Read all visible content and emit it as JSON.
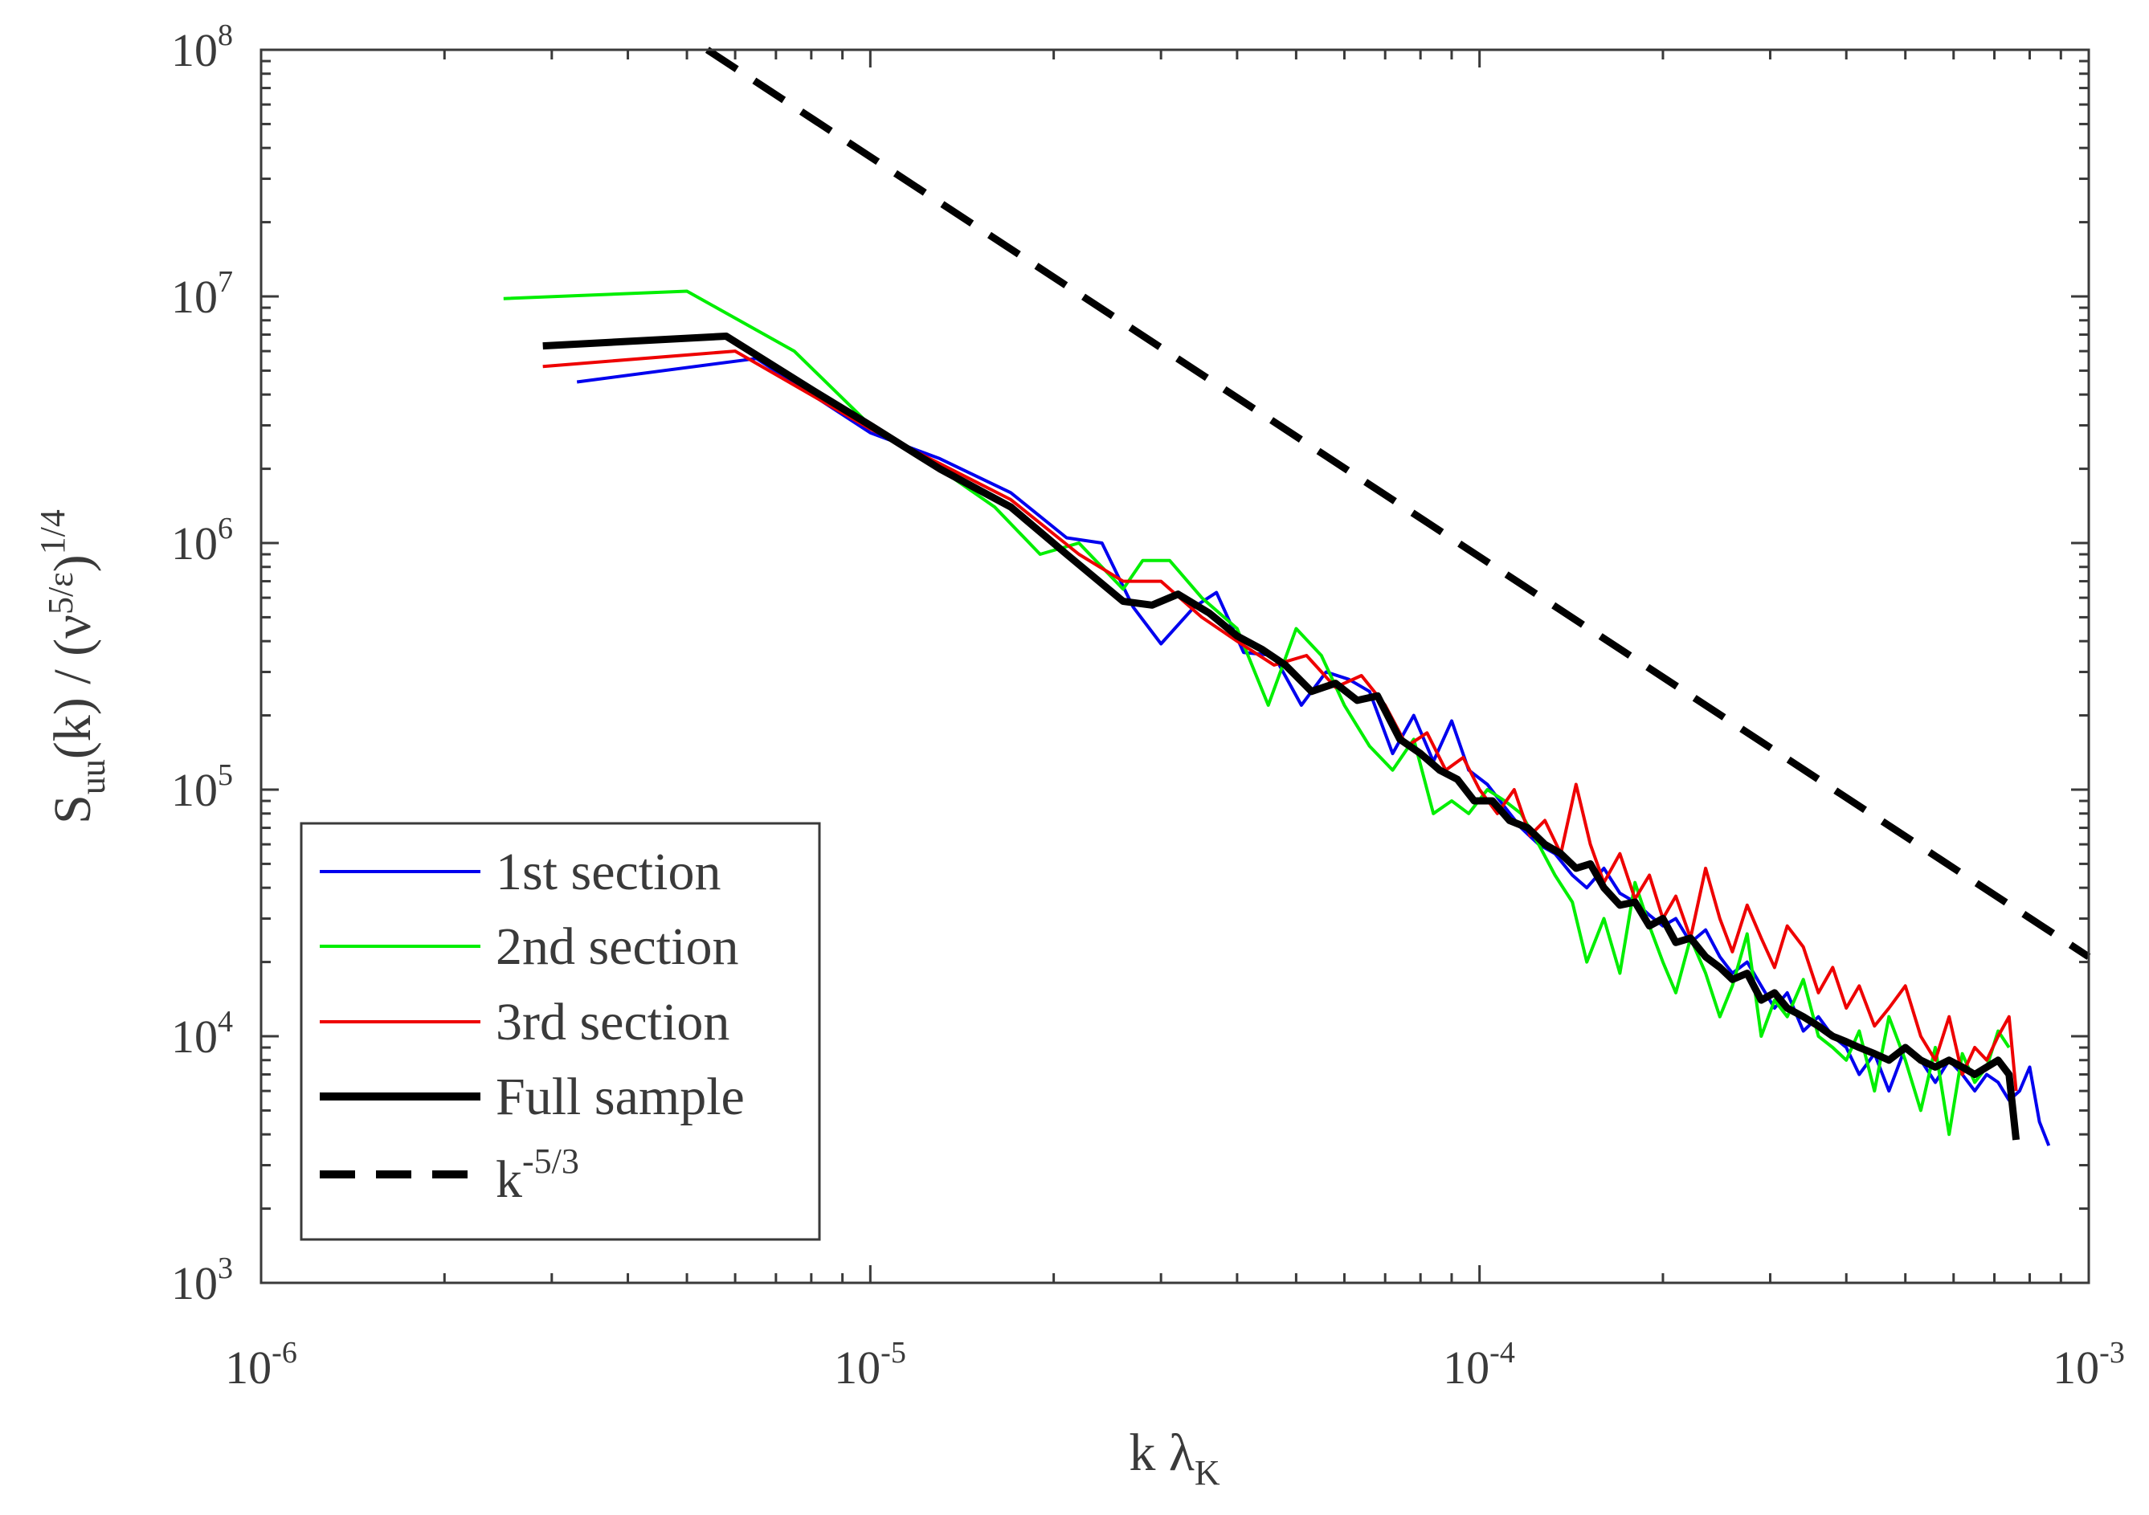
{
  "chart_data": {
    "type": "line",
    "title": "",
    "x_scale": "log",
    "y_scale": "log",
    "xlim": [
      1e-06,
      0.001
    ],
    "ylim": [
      1000.0,
      100000000.0
    ],
    "grid": false,
    "legend_position": "bottom-left",
    "xlabel": {
      "main": "k ",
      "symbol": "λ",
      "sub": "K"
    },
    "ylabel": {
      "s": "S",
      "sub": "uu",
      "mid": "(k) / (",
      "nu": "ν",
      "exp5": "5",
      "slash": "/",
      "eps": "ε",
      "close": ")",
      "sup": "1/4"
    },
    "x_ticks": [
      {
        "base": "10",
        "exp": "-6",
        "value": 1e-06
      },
      {
        "base": "10",
        "exp": "-5",
        "value": 1e-05
      },
      {
        "base": "10",
        "exp": "-4",
        "value": 0.0001
      },
      {
        "base": "10",
        "exp": "-3",
        "value": 0.001
      }
    ],
    "y_ticks": [
      {
        "base": "10",
        "exp": "3",
        "value": 1000.0
      },
      {
        "base": "10",
        "exp": "4",
        "value": 10000.0
      },
      {
        "base": "10",
        "exp": "5",
        "value": 100000.0
      },
      {
        "base": "10",
        "exp": "6",
        "value": 1000000.0
      },
      {
        "base": "10",
        "exp": "7",
        "value": 10000000.0
      },
      {
        "base": "10",
        "exp": "8",
        "value": 100000000.0
      }
    ],
    "series": [
      {
        "name": "1st section",
        "color": "#0000ee",
        "style": "solid",
        "weight": "thin",
        "x": [
          3.3e-06,
          6.5e-06,
          1e-05,
          1.3e-05,
          1.7e-05,
          2.1e-05,
          2.4e-05,
          2.7e-05,
          3e-05,
          3.4e-05,
          3.7e-05,
          4.1e-05,
          4.6e-05,
          5.1e-05,
          5.6e-05,
          6.1e-05,
          6.6e-05,
          7.2e-05,
          7.8e-05,
          8.4e-05,
          9e-05,
          9.6e-05,
          0.000103,
          0.00011,
          0.000117,
          0.000125,
          0.000133,
          0.000142,
          0.00015,
          0.00016,
          0.00017,
          0.00018,
          0.00019,
          0.0002,
          0.00021,
          0.000222,
          0.000235,
          0.000248,
          0.00026,
          0.000275,
          0.00029,
          0.000305,
          0.00032,
          0.00034,
          0.00036,
          0.00038,
          0.0004,
          0.00042,
          0.000445,
          0.00047,
          0.0005,
          0.00053,
          0.00056,
          0.00059,
          0.00062,
          0.00065,
          0.00068,
          0.00071,
          0.00074,
          0.00077,
          0.0008,
          0.00083,
          0.00086
        ],
        "y": [
          4500000.0,
          5600000.0,
          2800000.0,
          2200000.0,
          1600000.0,
          1050000.0,
          1000000.0,
          550000.0,
          390000.0,
          550000.0,
          630000.0,
          360000.0,
          350000.0,
          220000.0,
          300000.0,
          280000.0,
          250000.0,
          140000.0,
          200000.0,
          130000.0,
          190000.0,
          120000.0,
          105000.0,
          85000.0,
          70000.0,
          60000.0,
          55000.0,
          45000.0,
          40000.0,
          48000.0,
          38000.0,
          35000.0,
          31000.0,
          28000.0,
          30000.0,
          24000.0,
          27000.0,
          21000.0,
          18000.0,
          20000.0,
          16000.0,
          13000.0,
          15000.0,
          10500.0,
          12000.0,
          10000.0,
          9000.0,
          7000.0,
          8500.0,
          6000.0,
          9000.0,
          8000.0,
          6500.0,
          8000.0,
          7000.0,
          6000.0,
          7000.0,
          6500.0,
          5500.0,
          6000.0,
          7500.0,
          4500.0,
          3600.0
        ]
      },
      {
        "name": "2nd section",
        "color": "#00ee00",
        "style": "solid",
        "weight": "thin",
        "x": [
          2.5e-06,
          5e-06,
          7.5e-06,
          1e-05,
          1.3e-05,
          1.6e-05,
          1.9e-05,
          2.2e-05,
          2.6e-05,
          2.8e-05,
          3.1e-05,
          3.5e-05,
          4e-05,
          4.5e-05,
          5e-05,
          5.5e-05,
          6e-05,
          6.6e-05,
          7.2e-05,
          7.8e-05,
          8.4e-05,
          9e-05,
          9.6e-05,
          0.000103,
          0.00011,
          0.000117,
          0.000125,
          0.000133,
          0.000142,
          0.00015,
          0.00016,
          0.00017,
          0.00018,
          0.00019,
          0.0002,
          0.00021,
          0.000222,
          0.000235,
          0.000248,
          0.00026,
          0.000275,
          0.00029,
          0.000305,
          0.00032,
          0.00034,
          0.00036,
          0.00038,
          0.0004,
          0.00042,
          0.000445,
          0.00047,
          0.0005,
          0.00053,
          0.00056,
          0.00059,
          0.00062,
          0.00065,
          0.00068,
          0.00071,
          0.00074
        ],
        "y": [
          9800000.0,
          10500000.0,
          6000000.0,
          3000000.0,
          2000000.0,
          1400000.0,
          900000.0,
          1000000.0,
          650000.0,
          850000.0,
          850000.0,
          600000.0,
          450000.0,
          220000.0,
          450000.0,
          350000.0,
          220000.0,
          150000.0,
          120000.0,
          160000.0,
          80000.0,
          90000.0,
          80000.0,
          100000.0,
          90000.0,
          80000.0,
          60000.0,
          45000.0,
          35000.0,
          20000.0,
          30000.0,
          18000.0,
          42000.0,
          28000.0,
          20000.0,
          15000.0,
          25000.0,
          18000.0,
          12000.0,
          16000.0,
          26000.0,
          10000.0,
          14000.0,
          12000.0,
          17000.0,
          10000.0,
          9000.0,
          8000.0,
          10500.0,
          6000.0,
          12000.0,
          8000.0,
          5000.0,
          9000.0,
          4000.0,
          8500.0,
          6500.0,
          7500.0,
          10500.0,
          9000.0
        ]
      },
      {
        "name": "3rd section",
        "color": "#ee0000",
        "style": "solid",
        "weight": "thin",
        "x": [
          2.9e-06,
          6e-06,
          1e-05,
          1.3e-05,
          1.7e-05,
          2.2e-05,
          2.6e-05,
          3e-05,
          3.5e-05,
          4e-05,
          4.6e-05,
          5.2e-05,
          5.8e-05,
          6.4e-05,
          7e-05,
          7.6e-05,
          8.2e-05,
          8.8e-05,
          9.4e-05,
          0.0001,
          0.000107,
          0.000114,
          0.000121,
          0.000128,
          0.000136,
          0.000144,
          0.000152,
          0.00016,
          0.00017,
          0.00018,
          0.00019,
          0.0002,
          0.00021,
          0.000222,
          0.000235,
          0.000248,
          0.00026,
          0.000275,
          0.00029,
          0.000305,
          0.00032,
          0.00034,
          0.00036,
          0.00038,
          0.0004,
          0.00042,
          0.000445,
          0.00047,
          0.0005,
          0.00053,
          0.00056,
          0.00059,
          0.00062,
          0.00065,
          0.00068,
          0.00071,
          0.00074,
          0.00076
        ],
        "y": [
          5200000.0,
          6000000.0,
          2900000.0,
          2100000.0,
          1500000.0,
          900000.0,
          700000.0,
          700000.0,
          500000.0,
          400000.0,
          320000.0,
          350000.0,
          260000.0,
          290000.0,
          220000.0,
          150000.0,
          170000.0,
          120000.0,
          135000.0,
          100000.0,
          80000.0,
          100000.0,
          65000.0,
          75000.0,
          55000.0,
          105000.0,
          60000.0,
          42000.0,
          55000.0,
          36000.0,
          45000.0,
          30000.0,
          37000.0,
          25000.0,
          48000.0,
          30000.0,
          22000.0,
          34000.0,
          25000.0,
          19000.0,
          28000.0,
          23000.0,
          15000.0,
          19000.0,
          13000.0,
          16000.0,
          11000.0,
          13000.0,
          16000.0,
          10000.0,
          8000.0,
          12000.0,
          7000.0,
          9000.0,
          8000.0,
          10000.0,
          12000.0,
          6000.0
        ]
      },
      {
        "name": "Full sample",
        "color": "#000000",
        "style": "solid",
        "weight": "thick",
        "x": [
          2.9e-06,
          5.8e-06,
          8e-06,
          1e-05,
          1.3e-05,
          1.7e-05,
          2.1e-05,
          2.6e-05,
          2.9e-05,
          3.2e-05,
          3.6e-05,
          4e-05,
          4.4e-05,
          4.8e-05,
          5.3e-05,
          5.8e-05,
          6.3e-05,
          6.8e-05,
          7.4e-05,
          8e-05,
          8.6e-05,
          9.2e-05,
          9.8e-05,
          0.000105,
          0.000112,
          0.00012,
          0.000128,
          0.000136,
          0.000144,
          0.000152,
          0.00016,
          0.00017,
          0.00018,
          0.00019,
          0.0002,
          0.00021,
          0.000222,
          0.000235,
          0.000248,
          0.00026,
          0.000275,
          0.00029,
          0.000305,
          0.00032,
          0.00034,
          0.00036,
          0.00038,
          0.0004,
          0.00042,
          0.000445,
          0.00047,
          0.0005,
          0.00053,
          0.00056,
          0.00059,
          0.00062,
          0.00065,
          0.00068,
          0.00071,
          0.00074,
          0.00076
        ],
        "y": [
          6300000.0,
          6900000.0,
          4200000.0,
          3000000.0,
          2000000.0,
          1400000.0,
          900000.0,
          580000.0,
          560000.0,
          620000.0,
          520000.0,
          420000.0,
          370000.0,
          320000.0,
          250000.0,
          270000.0,
          230000.0,
          240000.0,
          160000.0,
          140000.0,
          120000.0,
          110000.0,
          90000.0,
          90000.0,
          75000.0,
          70000.0,
          60000.0,
          55000.0,
          48000.0,
          50000.0,
          40000.0,
          34000.0,
          35000.0,
          28000.0,
          30000.0,
          24000.0,
          25000.0,
          21000.0,
          19000.0,
          17000.0,
          18000.0,
          14000.0,
          15000.0,
          13000.0,
          12000.0,
          11000.0,
          10000.0,
          9500.0,
          9000.0,
          8500.0,
          8000.0,
          9000.0,
          8000.0,
          7500.0,
          8000.0,
          7500.0,
          7000.0,
          7500.0,
          8000.0,
          7000.0,
          3800.0
        ]
      },
      {
        "name": "k",
        "name_sup": "-5/3",
        "color": "#000000",
        "style": "dashed",
        "weight": "thick",
        "x": [
          5.4e-06,
          0.001
        ],
        "y": [
          100000000.0,
          21000.0
        ]
      }
    ]
  }
}
